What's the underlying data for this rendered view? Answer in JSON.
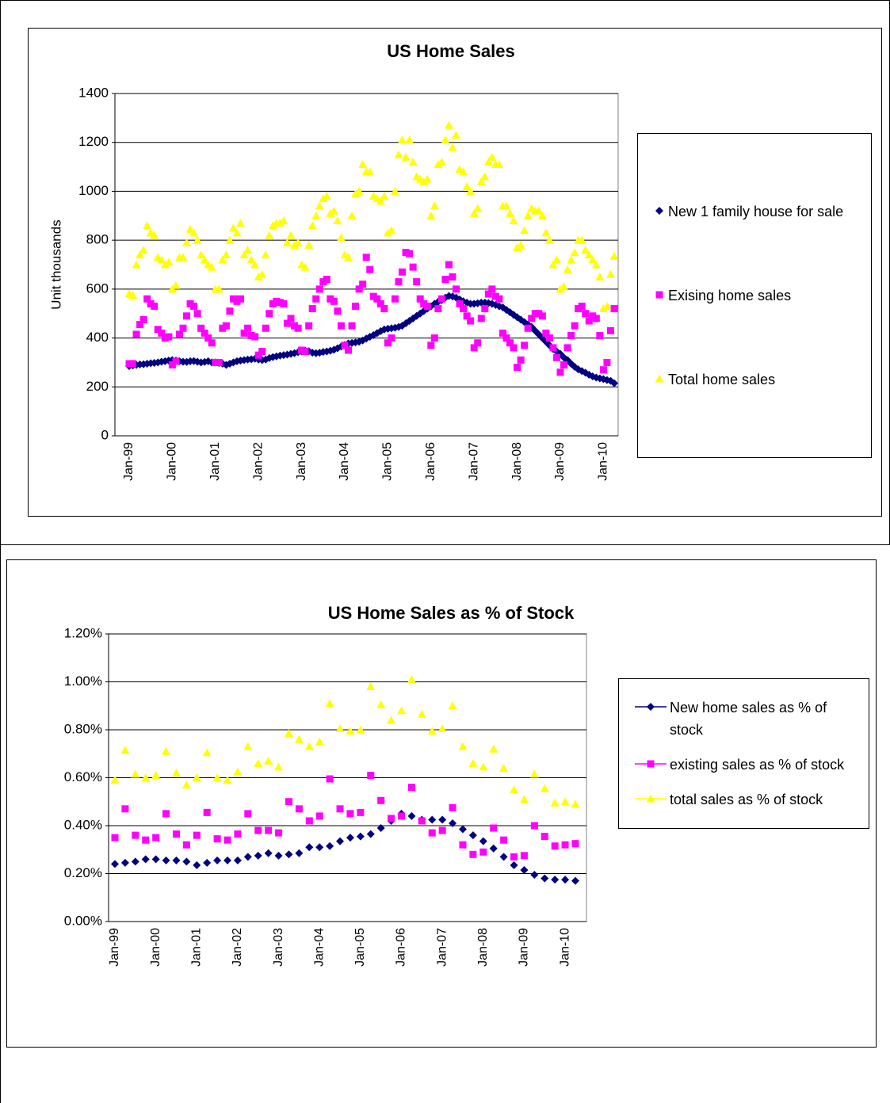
{
  "chart_data": [
    {
      "type": "scatter",
      "title": "US Home Sales",
      "y_label": "Unit thousands",
      "categories": [
        "Jan-99",
        null,
        null,
        null,
        null,
        null,
        null,
        null,
        null,
        null,
        null,
        null,
        "Jan-00",
        null,
        null,
        null,
        null,
        null,
        null,
        null,
        null,
        null,
        null,
        null,
        "Jan-01",
        null,
        null,
        null,
        null,
        null,
        null,
        null,
        null,
        null,
        null,
        null,
        "Jan-02",
        null,
        null,
        null,
        null,
        null,
        null,
        null,
        null,
        null,
        null,
        null,
        "Jan-03",
        null,
        null,
        null,
        null,
        null,
        null,
        null,
        null,
        null,
        null,
        null,
        "Jan-04",
        null,
        null,
        null,
        null,
        null,
        null,
        null,
        null,
        null,
        null,
        null,
        "Jan-05",
        null,
        null,
        null,
        null,
        null,
        null,
        null,
        null,
        null,
        null,
        null,
        "Jan-06",
        null,
        null,
        null,
        null,
        null,
        null,
        null,
        null,
        null,
        null,
        null,
        "Jan-07",
        null,
        null,
        null,
        null,
        null,
        null,
        null,
        null,
        null,
        null,
        null,
        "Jan-08",
        null,
        null,
        null,
        null,
        null,
        null,
        null,
        null,
        null,
        null,
        null,
        "Jan-09",
        null,
        null,
        null,
        null,
        null,
        null,
        null,
        null,
        null,
        null,
        null,
        "Jan-10",
        null,
        null,
        null
      ],
      "ylim": [
        0,
        1400
      ],
      "yticks": [
        0,
        200,
        400,
        600,
        800,
        1000,
        1200,
        1400
      ],
      "grid": true,
      "legend": "right",
      "legend_lines": false,
      "series": [
        {
          "name": "New 1 family house for sale",
          "color": "#000080",
          "marker": "diamond",
          "values": [
            285,
            288,
            290,
            292,
            293,
            295,
            297,
            298,
            300,
            303,
            305,
            308,
            310,
            308,
            305,
            303,
            302,
            305,
            306,
            303,
            300,
            302,
            305,
            300,
            300,
            298,
            295,
            290,
            295,
            300,
            305,
            308,
            310,
            312,
            313,
            315,
            312,
            310,
            312,
            318,
            322,
            325,
            328,
            330,
            332,
            335,
            338,
            342,
            345,
            348,
            346,
            340,
            338,
            340,
            343,
            345,
            348,
            352,
            358,
            365,
            372,
            378,
            380,
            382,
            385,
            390,
            398,
            405,
            412,
            420,
            428,
            435,
            438,
            440,
            442,
            445,
            450,
            460,
            470,
            480,
            490,
            500,
            510,
            520,
            530,
            540,
            548,
            555,
            565,
            572,
            570,
            565,
            558,
            550,
            545,
            540,
            540,
            542,
            545,
            545,
            543,
            540,
            535,
            530,
            525,
            515,
            505,
            495,
            485,
            475,
            465,
            455,
            445,
            430,
            415,
            400,
            385,
            370,
            355,
            345,
            335,
            320,
            310,
            295,
            282,
            272,
            265,
            258,
            250,
            243,
            238,
            235,
            232,
            228,
            225,
            215
          ]
        },
        {
          "name": "Exising home sales",
          "color": "#ff00ff",
          "marker": "square",
          "values": [
            295,
            295,
            415,
            455,
            475,
            560,
            540,
            530,
            435,
            420,
            400,
            405,
            290,
            305,
            415,
            440,
            490,
            540,
            530,
            500,
            440,
            420,
            400,
            380,
            300,
            300,
            440,
            450,
            510,
            560,
            550,
            560,
            420,
            440,
            410,
            405,
            330,
            345,
            440,
            500,
            540,
            550,
            545,
            540,
            460,
            480,
            450,
            440,
            350,
            345,
            450,
            520,
            560,
            600,
            630,
            640,
            560,
            550,
            510,
            450,
            370,
            350,
            450,
            530,
            600,
            620,
            730,
            680,
            570,
            560,
            540,
            520,
            380,
            400,
            560,
            630,
            670,
            750,
            745,
            690,
            630,
            560,
            540,
            530,
            370,
            400,
            520,
            560,
            640,
            700,
            650,
            600,
            540,
            520,
            490,
            470,
            360,
            380,
            480,
            520,
            580,
            600,
            570,
            560,
            420,
            400,
            380,
            360,
            280,
            310,
            370,
            440,
            480,
            500,
            500,
            490,
            420,
            400,
            360,
            320,
            260,
            290,
            360,
            410,
            450,
            520,
            530,
            500,
            470,
            490,
            480,
            410,
            270,
            300,
            430,
            520
          ]
        },
        {
          "name": "Total home sales",
          "color": "#ffff00",
          "marker": "triangle",
          "values": [
            580,
            575,
            700,
            740,
            760,
            860,
            830,
            820,
            730,
            720,
            700,
            710,
            600,
            615,
            730,
            730,
            790,
            845,
            830,
            800,
            740,
            720,
            700,
            690,
            600,
            600,
            720,
            740,
            800,
            850,
            830,
            870,
            740,
            760,
            720,
            700,
            650,
            660,
            740,
            820,
            860,
            870,
            870,
            880,
            790,
            820,
            780,
            790,
            700,
            690,
            780,
            860,
            900,
            940,
            970,
            980,
            910,
            920,
            880,
            810,
            740,
            730,
            900,
            990,
            1000,
            1110,
            1080,
            1080,
            980,
            970,
            960,
            980,
            830,
            840,
            1000,
            1150,
            1210,
            1140,
            1210,
            1120,
            1060,
            1050,
            1040,
            1050,
            900,
            940,
            1110,
            1120,
            1210,
            1270,
            1180,
            1230,
            1090,
            1080,
            1020,
            1000,
            910,
            930,
            1040,
            1060,
            1120,
            1140,
            1110,
            1110,
            940,
            940,
            910,
            880,
            770,
            780,
            840,
            900,
            930,
            920,
            920,
            900,
            830,
            800,
            700,
            720,
            600,
            610,
            680,
            720,
            750,
            800,
            800,
            760,
            740,
            720,
            700,
            650,
            520,
            530,
            660,
            735
          ]
        }
      ]
    },
    {
      "type": "scatter",
      "title": "US Home Sales as % of Stock",
      "categories": [
        "Jan-99",
        null,
        null,
        null,
        "Jan-00",
        null,
        null,
        null,
        "Jan-01",
        null,
        null,
        null,
        "Jan-02",
        null,
        null,
        null,
        "Jan-03",
        null,
        null,
        null,
        "Jan-04",
        null,
        null,
        null,
        "Jan-05",
        null,
        null,
        null,
        "Jan-06",
        null,
        null,
        null,
        "Jan-07",
        null,
        null,
        null,
        "Jan-08",
        null,
        null,
        null,
        "Jan-09",
        null,
        null,
        null,
        "Jan-10",
        null
      ],
      "ylim": [
        0,
        1.2
      ],
      "yticks": [
        {
          "value": 0,
          "label": "0.00%"
        },
        {
          "value": 0.2,
          "label": "0.20%"
        },
        {
          "value": 0.4,
          "label": "0.40%"
        },
        {
          "value": 0.6,
          "label": "0.60%"
        },
        {
          "value": 0.8,
          "label": "0.80%"
        },
        {
          "value": 1.0,
          "label": "1.00%"
        },
        {
          "value": 1.2,
          "label": "1.20%"
        }
      ],
      "grid": true,
      "legend": "right",
      "legend_lines": true,
      "series": [
        {
          "name": "New home sales as % of stock",
          "color": "#000080",
          "marker": "diamond",
          "values": [
            0.24,
            0.245,
            0.25,
            0.26,
            0.26,
            0.255,
            0.255,
            0.25,
            0.235,
            0.245,
            0.255,
            0.255,
            0.255,
            0.27,
            0.275,
            0.285,
            0.275,
            0.28,
            0.285,
            0.31,
            0.31,
            0.315,
            0.335,
            0.35,
            0.355,
            0.365,
            0.39,
            0.42,
            0.45,
            0.44,
            0.425,
            0.425,
            0.425,
            0.41,
            0.385,
            0.36,
            0.335,
            0.305,
            0.27,
            0.235,
            0.215,
            0.195,
            0.18,
            0.175,
            0.175,
            0.17
          ]
        },
        {
          "name": "existing sales as % of stock",
          "color": "#ff00ff",
          "marker": "square",
          "values": [
            0.35,
            0.47,
            0.36,
            0.34,
            0.35,
            0.45,
            0.365,
            0.32,
            0.36,
            0.455,
            0.345,
            0.34,
            0.365,
            0.45,
            0.38,
            0.38,
            0.37,
            0.5,
            0.47,
            0.42,
            0.44,
            0.595,
            0.47,
            0.45,
            0.455,
            0.61,
            0.505,
            0.43,
            0.44,
            0.56,
            0.42,
            0.37,
            0.38,
            0.475,
            0.32,
            0.28,
            0.29,
            0.39,
            0.34,
            0.27,
            0.275,
            0.4,
            0.355,
            0.315,
            0.32,
            0.325
          ]
        },
        {
          "name": "total sales as % of stock",
          "color": "#ffff00",
          "marker": "triangle",
          "values": [
            0.59,
            0.715,
            0.615,
            0.6,
            0.61,
            0.71,
            0.62,
            0.57,
            0.6,
            0.705,
            0.6,
            0.59,
            0.625,
            0.73,
            0.66,
            0.67,
            0.645,
            0.785,
            0.76,
            0.73,
            0.75,
            0.91,
            0.805,
            0.795,
            0.8,
            0.98,
            0.905,
            0.84,
            0.88,
            1.01,
            0.865,
            0.795,
            0.805,
            0.9,
            0.73,
            0.66,
            0.645,
            0.72,
            0.64,
            0.55,
            0.51,
            0.615,
            0.555,
            0.495,
            0.5,
            0.49
          ]
        }
      ]
    }
  ]
}
